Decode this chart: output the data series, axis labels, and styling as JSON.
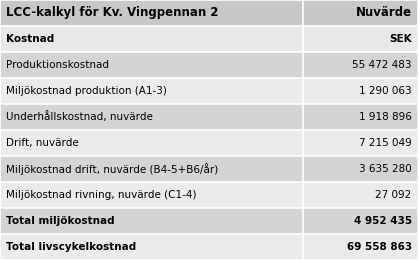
{
  "title_left": "LCC-kalkyl för Kv. Vingpennan 2",
  "title_right": "Nuvärde",
  "header_left": "Kostnad",
  "header_right": "SEK",
  "rows": [
    {
      "label": "Produktionskostnad",
      "value": "55 472 483",
      "bold": false,
      "bg": "#d4d4d4"
    },
    {
      "label": "Miljökostnad produktion (A1-3)",
      "value": "1 290 063",
      "bold": false,
      "bg": "#ebebeb"
    },
    {
      "label": "Underhållskostnad, nuvärde",
      "value": "1 918 896",
      "bold": false,
      "bg": "#d4d4d4"
    },
    {
      "label": "Drift, nuvärde",
      "value": "7 215 049",
      "bold": false,
      "bg": "#ebebeb"
    },
    {
      "label": "Miljökostnad drift, nuvärde (B4-5+B6/år)",
      "value": "3 635 280",
      "bold": false,
      "bg": "#d4d4d4"
    },
    {
      "label": "Miljökostnad rivning, nuvärde (C1-4)",
      "value": "27 092",
      "bold": false,
      "bg": "#ebebeb"
    },
    {
      "label": "Total miljökostnad",
      "value": "4 952 435",
      "bold": true,
      "bg": "#d4d4d4"
    },
    {
      "label": "Total livscykelkostnad",
      "value": "69 558 863",
      "bold": true,
      "bg": "#ebebeb"
    }
  ],
  "bg_title": "#c8c8c8",
  "bg_header": "#e8e8e8",
  "border_color": "#ffffff",
  "text_color": "#000000",
  "font_size": 7.5,
  "title_font_size": 8.5,
  "col_split": 0.725
}
